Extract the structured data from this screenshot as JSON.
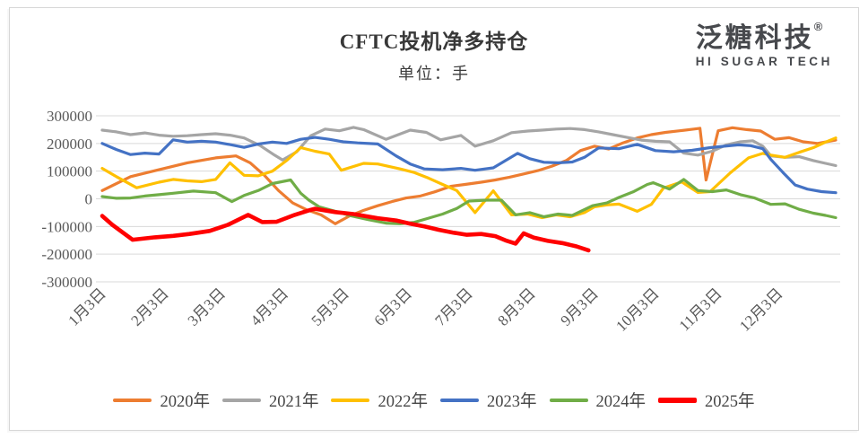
{
  "header": {
    "title": "CFTC投机净多持仓",
    "subtitle": "单位：手"
  },
  "logo": {
    "cn": "泛糖科技",
    "reg": "®",
    "en": "HI SUGAR TECH"
  },
  "chart_data": {
    "type": "line",
    "title": "CFTC投机净多持仓",
    "unit_label": "单位：手",
    "xlabel": "",
    "ylabel": "",
    "grid": true,
    "legend_position": "bottom",
    "ylim": [
      -300000,
      300000
    ],
    "y_ticks": [
      300000,
      200000,
      100000,
      0,
      -100000,
      -200000,
      -300000
    ],
    "y_tick_labels": [
      "300000",
      "200000",
      "100000",
      "0",
      "-100000",
      "-200000",
      "-300000"
    ],
    "x_tick_labels": [
      "1月3日",
      "2月3日",
      "3月3日",
      "4月3日",
      "5月3日",
      "6月3日",
      "7月3日",
      "8月3日",
      "9月3日",
      "10月3日",
      "11月3日",
      "12月3日"
    ],
    "x_tick_days": [
      3,
      34,
      62,
      93,
      123,
      154,
      184,
      215,
      246,
      276,
      307,
      337
    ],
    "x_day_range": [
      3,
      365
    ],
    "series": [
      {
        "name": "2020年",
        "color": "#ED7D31",
        "width": 3.2,
        "points": [
          [
            3,
            30000
          ],
          [
            17,
            80000
          ],
          [
            31,
            105000
          ],
          [
            45,
            130000
          ],
          [
            59,
            148000
          ],
          [
            69,
            155000
          ],
          [
            76,
            130000
          ],
          [
            83,
            85000
          ],
          [
            90,
            30000
          ],
          [
            97,
            -15000
          ],
          [
            104,
            -40000
          ],
          [
            111,
            -58000
          ],
          [
            118,
            -90000
          ],
          [
            125,
            -62000
          ],
          [
            132,
            -42000
          ],
          [
            139,
            -25000
          ],
          [
            146,
            -10000
          ],
          [
            153,
            3000
          ],
          [
            160,
            10000
          ],
          [
            167,
            25000
          ],
          [
            175,
            45000
          ],
          [
            182,
            52000
          ],
          [
            190,
            60000
          ],
          [
            197,
            68000
          ],
          [
            204,
            78000
          ],
          [
            211,
            90000
          ],
          [
            218,
            102000
          ],
          [
            225,
            118000
          ],
          [
            232,
            138000
          ],
          [
            239,
            174000
          ],
          [
            246,
            190000
          ],
          [
            253,
            180000
          ],
          [
            260,
            202000
          ],
          [
            267,
            220000
          ],
          [
            274,
            232000
          ],
          [
            281,
            240000
          ],
          [
            288,
            246000
          ],
          [
            295,
            252000
          ],
          [
            298,
            255000
          ],
          [
            301,
            68000
          ],
          [
            307,
            246000
          ],
          [
            314,
            257000
          ],
          [
            321,
            250000
          ],
          [
            328,
            245000
          ],
          [
            335,
            215000
          ],
          [
            342,
            221000
          ],
          [
            349,
            206000
          ],
          [
            356,
            200000
          ],
          [
            365,
            212000
          ]
        ]
      },
      {
        "name": "2021年",
        "color": "#A5A5A5",
        "width": 3.2,
        "points": [
          [
            3,
            248000
          ],
          [
            10,
            242000
          ],
          [
            17,
            232000
          ],
          [
            24,
            238000
          ],
          [
            31,
            230000
          ],
          [
            38,
            226000
          ],
          [
            45,
            228000
          ],
          [
            52,
            232000
          ],
          [
            59,
            235000
          ],
          [
            66,
            230000
          ],
          [
            73,
            220000
          ],
          [
            81,
            192000
          ],
          [
            88,
            158000
          ],
          [
            92,
            140000
          ],
          [
            99,
            170000
          ],
          [
            106,
            228000
          ],
          [
            113,
            252000
          ],
          [
            120,
            246000
          ],
          [
            127,
            258000
          ],
          [
            132,
            250000
          ],
          [
            143,
            215000
          ],
          [
            155,
            248000
          ],
          [
            163,
            240000
          ],
          [
            170,
            213000
          ],
          [
            180,
            229000
          ],
          [
            187,
            190000
          ],
          [
            196,
            210000
          ],
          [
            205,
            239000
          ],
          [
            213,
            245000
          ],
          [
            220,
            248000
          ],
          [
            227,
            252000
          ],
          [
            234,
            254000
          ],
          [
            241,
            250000
          ],
          [
            248,
            242000
          ],
          [
            255,
            232000
          ],
          [
            262,
            222000
          ],
          [
            269,
            212000
          ],
          [
            276,
            208000
          ],
          [
            283,
            206000
          ],
          [
            290,
            165000
          ],
          [
            297,
            158000
          ],
          [
            304,
            172000
          ],
          [
            311,
            195000
          ],
          [
            318,
            206000
          ],
          [
            324,
            210000
          ],
          [
            329,
            190000
          ],
          [
            333,
            155000
          ],
          [
            340,
            150000
          ],
          [
            347,
            152000
          ],
          [
            354,
            138000
          ],
          [
            360,
            128000
          ],
          [
            365,
            120000
          ]
        ]
      },
      {
        "name": "2022年",
        "color": "#FFC000",
        "width": 3.2,
        "points": [
          [
            3,
            110000
          ],
          [
            10,
            80000
          ],
          [
            20,
            40000
          ],
          [
            31,
            60000
          ],
          [
            38,
            70000
          ],
          [
            45,
            65000
          ],
          [
            52,
            62000
          ],
          [
            59,
            70000
          ],
          [
            66,
            130000
          ],
          [
            73,
            85000
          ],
          [
            80,
            83000
          ],
          [
            87,
            100000
          ],
          [
            94,
            138000
          ],
          [
            101,
            185000
          ],
          [
            108,
            172000
          ],
          [
            115,
            162000
          ],
          [
            121,
            103000
          ],
          [
            132,
            128000
          ],
          [
            139,
            126000
          ],
          [
            150,
            108000
          ],
          [
            157,
            95000
          ],
          [
            164,
            75000
          ],
          [
            171,
            52000
          ],
          [
            178,
            30000
          ],
          [
            187,
            -50000
          ],
          [
            196,
            29000
          ],
          [
            205,
            -58000
          ],
          [
            213,
            -55000
          ],
          [
            220,
            -68000
          ],
          [
            227,
            -58000
          ],
          [
            234,
            -65000
          ],
          [
            241,
            -50000
          ],
          [
            246,
            -29000
          ],
          [
            252,
            -22000
          ],
          [
            258,
            -19000
          ],
          [
            267,
            -45000
          ],
          [
            274,
            -20000
          ],
          [
            280,
            39000
          ],
          [
            289,
            61000
          ],
          [
            297,
            23000
          ],
          [
            303,
            26000
          ],
          [
            313,
            94000
          ],
          [
            322,
            148000
          ],
          [
            329,
            164000
          ],
          [
            333,
            158000
          ],
          [
            340,
            150000
          ],
          [
            347,
            168000
          ],
          [
            354,
            185000
          ],
          [
            360,
            205000
          ],
          [
            365,
            220000
          ]
        ]
      },
      {
        "name": "2023年",
        "color": "#4472C4",
        "width": 3.2,
        "points": [
          [
            3,
            200000
          ],
          [
            10,
            178000
          ],
          [
            17,
            160000
          ],
          [
            24,
            165000
          ],
          [
            31,
            162000
          ],
          [
            38,
            213000
          ],
          [
            45,
            205000
          ],
          [
            52,
            208000
          ],
          [
            59,
            205000
          ],
          [
            66,
            196000
          ],
          [
            73,
            186000
          ],
          [
            80,
            198000
          ],
          [
            87,
            205000
          ],
          [
            94,
            200000
          ],
          [
            101,
            215000
          ],
          [
            108,
            222000
          ],
          [
            115,
            215000
          ],
          [
            122,
            206000
          ],
          [
            129,
            202000
          ],
          [
            139,
            198000
          ],
          [
            148,
            155000
          ],
          [
            155,
            126000
          ],
          [
            162,
            108000
          ],
          [
            171,
            105000
          ],
          [
            180,
            110000
          ],
          [
            187,
            103000
          ],
          [
            196,
            112000
          ],
          [
            208,
            164000
          ],
          [
            214,
            145000
          ],
          [
            221,
            132000
          ],
          [
            228,
            130000
          ],
          [
            235,
            133000
          ],
          [
            241,
            150000
          ],
          [
            248,
            184000
          ],
          [
            258,
            181000
          ],
          [
            267,
            197000
          ],
          [
            276,
            174000
          ],
          [
            285,
            170000
          ],
          [
            294,
            175000
          ],
          [
            303,
            185000
          ],
          [
            310,
            190000
          ],
          [
            317,
            195000
          ],
          [
            323,
            192000
          ],
          [
            329,
            181000
          ],
          [
            333,
            142000
          ],
          [
            339,
            95000
          ],
          [
            345,
            50000
          ],
          [
            351,
            35000
          ],
          [
            358,
            26000
          ],
          [
            365,
            22000
          ]
        ]
      },
      {
        "name": "2024年",
        "color": "#70AD47",
        "width": 3.2,
        "points": [
          [
            3,
            8000
          ],
          [
            10,
            2000
          ],
          [
            17,
            3000
          ],
          [
            24,
            10000
          ],
          [
            31,
            15000
          ],
          [
            38,
            20000
          ],
          [
            48,
            28000
          ],
          [
            59,
            22000
          ],
          [
            67,
            -10000
          ],
          [
            73,
            12000
          ],
          [
            80,
            30000
          ],
          [
            87,
            55000
          ],
          [
            96,
            68000
          ],
          [
            101,
            20000
          ],
          [
            105,
            -5000
          ],
          [
            110,
            -29000
          ],
          [
            118,
            -45000
          ],
          [
            126,
            -62000
          ],
          [
            134,
            -75000
          ],
          [
            143,
            -88000
          ],
          [
            150,
            -90000
          ],
          [
            157,
            -85000
          ],
          [
            164,
            -70000
          ],
          [
            171,
            -55000
          ],
          [
            178,
            -35000
          ],
          [
            184,
            -8000
          ],
          [
            193,
            -5000
          ],
          [
            200,
            -5000
          ],
          [
            207,
            -58000
          ],
          [
            214,
            -50000
          ],
          [
            221,
            -65000
          ],
          [
            228,
            -55000
          ],
          [
            235,
            -60000
          ],
          [
            245,
            -25000
          ],
          [
            252,
            -15000
          ],
          [
            258,
            5000
          ],
          [
            265,
            25000
          ],
          [
            272,
            52000
          ],
          [
            275,
            58000
          ],
          [
            283,
            35000
          ],
          [
            290,
            70000
          ],
          [
            297,
            30000
          ],
          [
            304,
            26000
          ],
          [
            311,
            32000
          ],
          [
            318,
            15000
          ],
          [
            325,
            3000
          ],
          [
            333,
            -20000
          ],
          [
            340,
            -18000
          ],
          [
            347,
            -38000
          ],
          [
            354,
            -52000
          ],
          [
            360,
            -60000
          ],
          [
            365,
            -68000
          ]
        ]
      },
      {
        "name": "2025年",
        "color": "#FF0000",
        "width": 4.6,
        "points": [
          [
            3,
            -62000
          ],
          [
            8,
            -94000
          ],
          [
            18,
            -148000
          ],
          [
            29,
            -139000
          ],
          [
            38,
            -134000
          ],
          [
            46,
            -127000
          ],
          [
            56,
            -116000
          ],
          [
            65,
            -94000
          ],
          [
            75,
            -58000
          ],
          [
            82,
            -84000
          ],
          [
            89,
            -83000
          ],
          [
            98,
            -58000
          ],
          [
            105,
            -42000
          ],
          [
            108,
            -36000
          ],
          [
            118,
            -48000
          ],
          [
            127,
            -55000
          ],
          [
            139,
            -70000
          ],
          [
            148,
            -78000
          ],
          [
            155,
            -90000
          ],
          [
            162,
            -100000
          ],
          [
            169,
            -112000
          ],
          [
            176,
            -122000
          ],
          [
            183,
            -130000
          ],
          [
            190,
            -127000
          ],
          [
            197,
            -135000
          ],
          [
            202,
            -150000
          ],
          [
            207,
            -162000
          ],
          [
            211,
            -125000
          ],
          [
            216,
            -140000
          ],
          [
            223,
            -152000
          ],
          [
            230,
            -160000
          ],
          [
            237,
            -172000
          ],
          [
            243,
            -186000
          ]
        ]
      }
    ]
  }
}
